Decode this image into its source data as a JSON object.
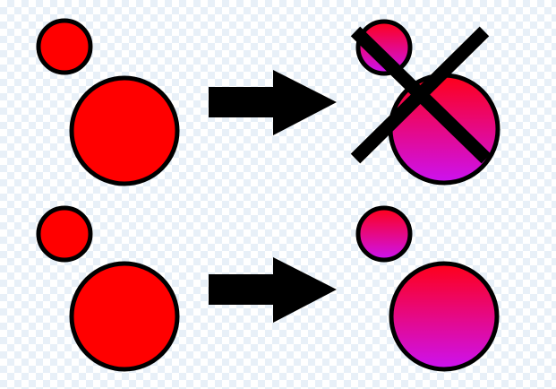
{
  "colors": {
    "solid_red": "#ff0000",
    "gradient_top": "#ff0018",
    "gradient_bottom": "#cc12f2",
    "stroke": "#000000",
    "arrow": "#000000",
    "cross": "#000000"
  },
  "rows": [
    {
      "name": "overlapping-result-rejected",
      "left_icon": "two-separate-red-circles",
      "arrow_icon": "right-arrow-icon",
      "right_icon": "overlapping-gradient-circles",
      "marked_wrong": true,
      "mark_icon": "x-cross-icon"
    },
    {
      "name": "separated-result-accepted",
      "left_icon": "two-separate-red-circles",
      "arrow_icon": "right-arrow-icon",
      "right_icon": "separate-gradient-circles",
      "marked_wrong": false
    }
  ]
}
